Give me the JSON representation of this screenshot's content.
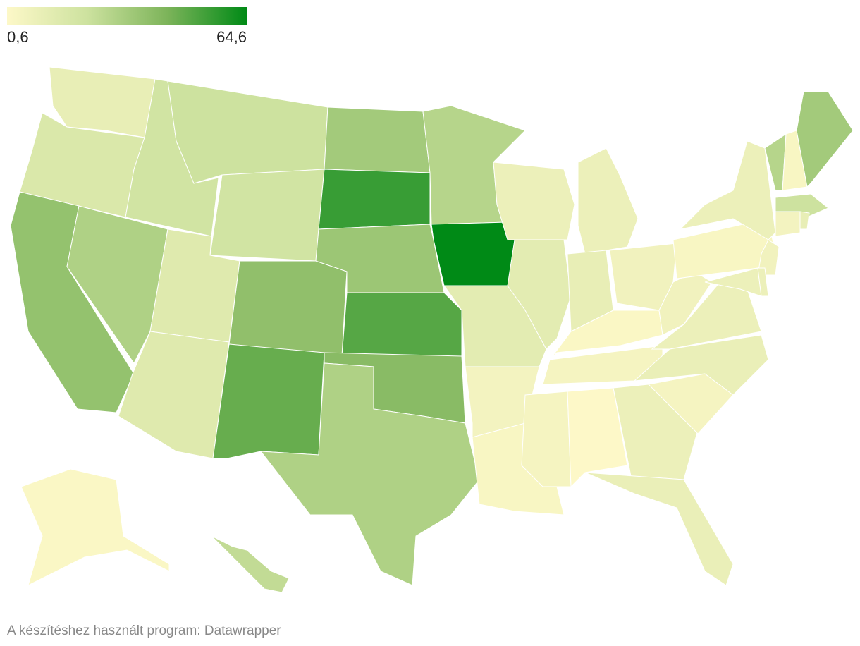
{
  "chart_data": {
    "type": "choropleth",
    "colors": [
      "#fdf8c8",
      "#cde29f",
      "#7db45a",
      "#008a16"
    ],
    "ticks": [
      {
        "value": 0.6,
        "label": "0,6"
      },
      {
        "value": 64.6,
        "label": "64,6"
      }
    ],
    "values": [
      10,
      16,
      37,
      30,
      20,
      22,
      20,
      14,
      14,
      38,
      47,
      33,
      55,
      35,
      50,
      40,
      30,
      28,
      64.6,
      12,
      5,
      3,
      8,
      12,
      8,
      10,
      6,
      2,
      4,
      4,
      0.6,
      8,
      9,
      4,
      9,
      8,
      6,
      3,
      8,
      6,
      8,
      8,
      28,
      3,
      33,
      22,
      5,
      10,
      2,
      25
    ],
    "source": "A készítéshez használt program: Datawrapper"
  }
}
